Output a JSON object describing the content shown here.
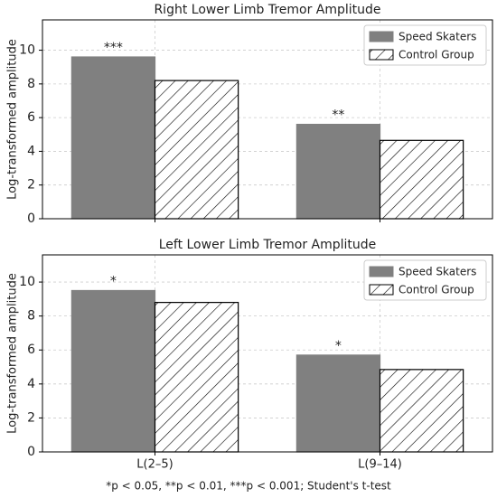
{
  "chart_data": [
    {
      "type": "bar",
      "title": "Right Lower Limb Tremor Amplitude",
      "y_label": "Log-transformed amplitude",
      "categories": [
        null,
        null
      ],
      "series": [
        {
          "name": "Speed Skaters",
          "color": "#808080",
          "values": [
            9.6,
            5.6
          ]
        },
        {
          "name": "Control Group",
          "color": "#ffffff",
          "hatch": true,
          "values": [
            8.2,
            4.65
          ]
        }
      ],
      "annotations": [
        "***",
        "**"
      ],
      "ylim": [
        0,
        11.8
      ],
      "yticks": [
        0,
        2,
        4,
        6,
        8,
        10
      ],
      "grid": true,
      "legend": "upper right"
    },
    {
      "type": "bar",
      "title": "Left Lower Limb Tremor Amplitude",
      "y_label": "Log-transformed amplitude",
      "categories": [
        "L(2–5)",
        "L(9–14)"
      ],
      "series": [
        {
          "name": "Speed Skaters",
          "color": "#808080",
          "values": [
            9.5,
            5.7
          ]
        },
        {
          "name": "Control Group",
          "color": "#ffffff",
          "hatch": true,
          "values": [
            8.8,
            4.85
          ]
        }
      ],
      "annotations": [
        "*",
        "*"
      ],
      "ylim": [
        0,
        11.6
      ],
      "yticks": [
        0,
        2,
        4,
        6,
        8,
        10
      ],
      "grid": true,
      "legend": "upper right"
    }
  ],
  "footnote": "*p < 0.05, **p < 0.01, ***p < 0.001; Student's t-test"
}
